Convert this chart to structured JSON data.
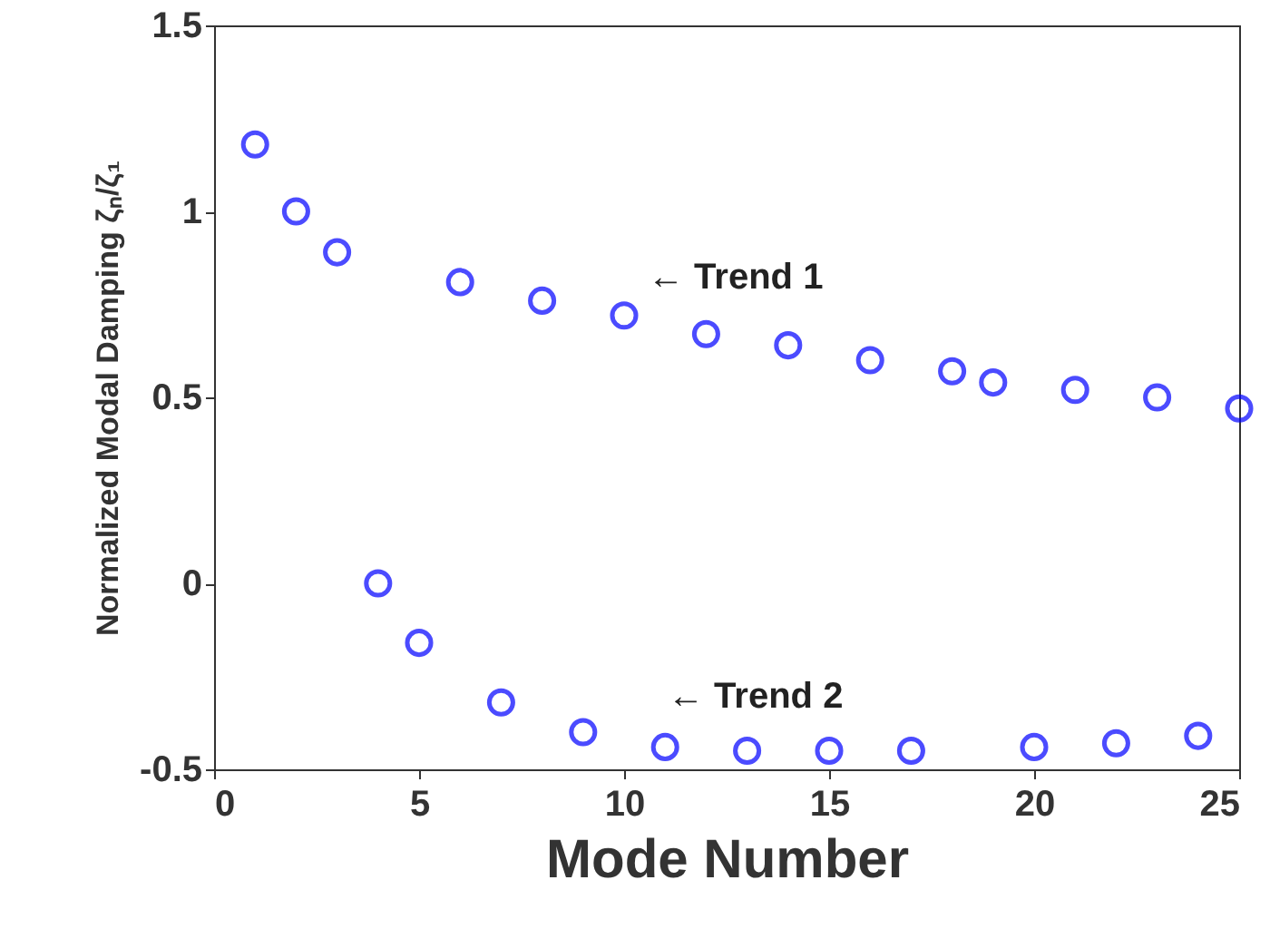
{
  "chart_data": {
    "type": "scatter",
    "xlabel": "Mode Number",
    "ylabel": "Normalized Modal Damping ζₙ/ζ₁",
    "x": [
      1,
      2,
      3,
      4,
      5,
      6,
      7,
      8,
      9,
      10,
      11,
      12,
      13,
      14,
      15,
      16,
      17,
      18,
      19,
      20,
      21,
      22,
      23,
      24,
      25
    ],
    "series": [
      {
        "color": "#0000ff",
        "values": [
          1.18,
          1.0,
          0.89,
          0.0,
          -0.16,
          0.81,
          -0.32,
          0.76,
          -0.4,
          0.72,
          -0.44,
          0.67,
          -0.45,
          0.64,
          -0.45,
          0.6,
          -0.45,
          0.57,
          0.54,
          -0.44,
          0.52,
          -0.43,
          0.5,
          -0.41,
          0.47
        ]
      }
    ],
    "xlim": [
      0,
      25
    ],
    "xticks": [
      0,
      5,
      10,
      15,
      20,
      25
    ],
    "ylim": [
      -0.5,
      1.5
    ],
    "yticks": [
      -0.5,
      0,
      0.5,
      1,
      1.5
    ],
    "marker": "circle",
    "grid": false,
    "annotations": [
      "← Trend 1",
      "← Trend 2"
    ]
  }
}
